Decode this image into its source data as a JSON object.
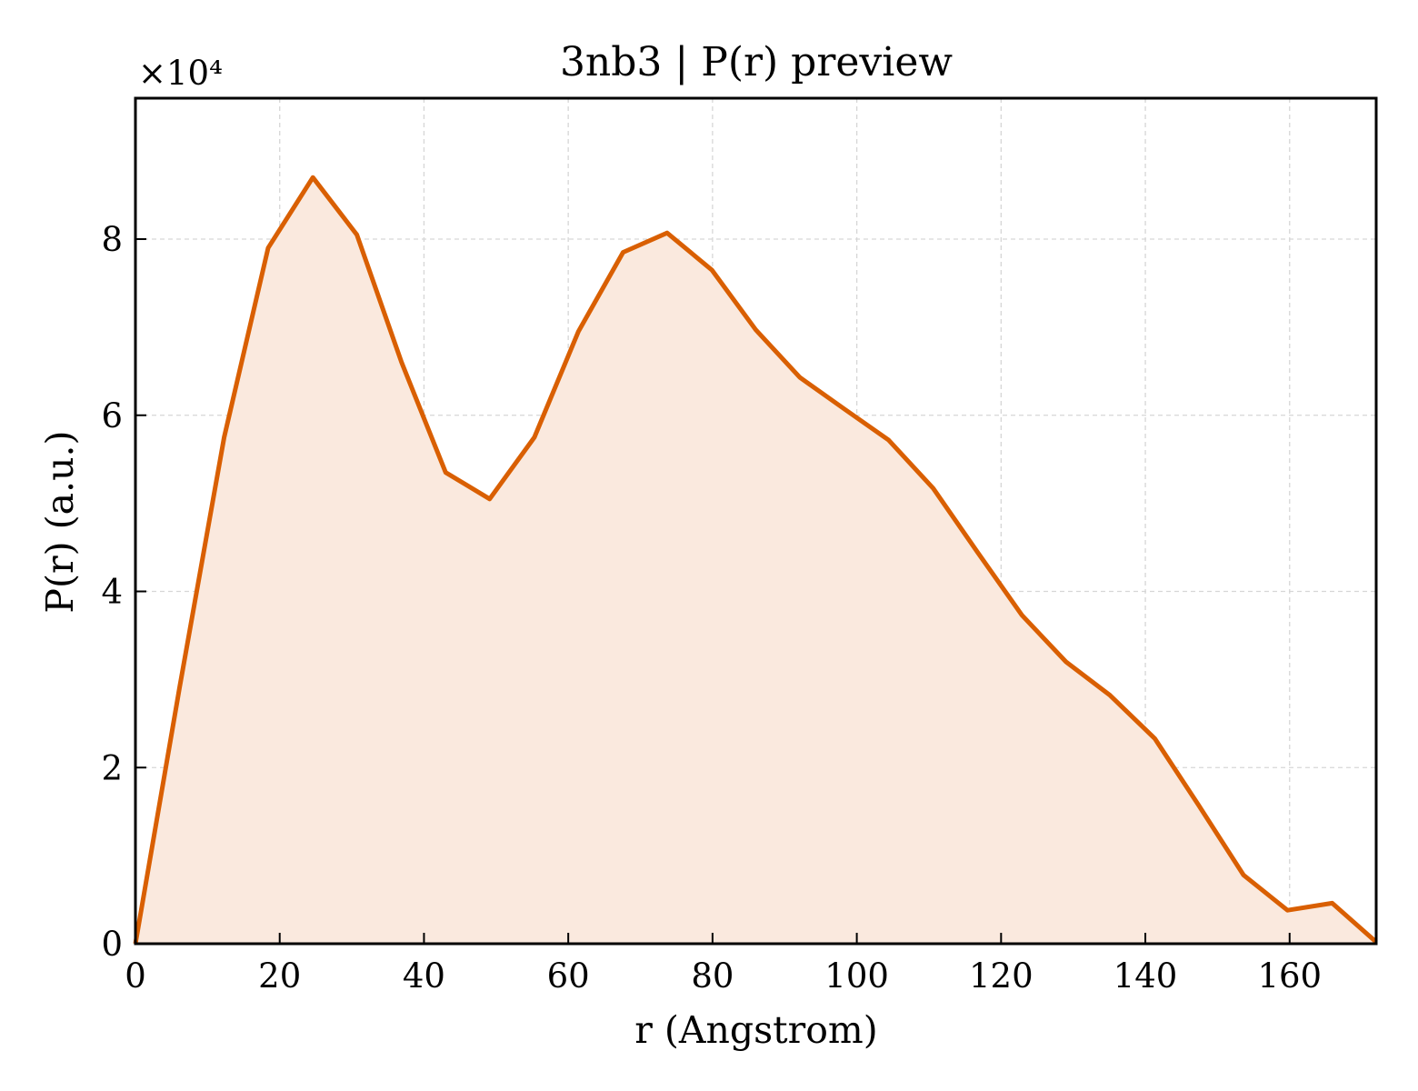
{
  "chart_data": {
    "type": "area",
    "title": "3nb3 | P(r) preview",
    "xlabel": "r (Angstrom)",
    "ylabel": "P(r) (a.u.)",
    "y_multiplier": "×10⁴",
    "xlim": [
      0,
      172
    ],
    "ylim": [
      0,
      9.6
    ],
    "xticks": [
      0,
      20,
      40,
      60,
      80,
      100,
      120,
      140,
      160
    ],
    "yticks": [
      0,
      2,
      4,
      6,
      8
    ],
    "grid": true,
    "line_color": "#d95f02",
    "fill_color": "#fae9de",
    "x": [
      0,
      6.1,
      12.3,
      18.4,
      24.6,
      30.7,
      36.9,
      43.0,
      49.1,
      55.3,
      61.4,
      67.6,
      73.7,
      79.9,
      86.0,
      92.1,
      98.3,
      104.4,
      110.6,
      116.7,
      122.9,
      129.0,
      135.1,
      141.3,
      147.4,
      153.6,
      159.7,
      165.9,
      172.0
    ],
    "y": [
      0,
      2.9,
      5.75,
      7.9,
      8.7,
      8.05,
      6.6,
      5.35,
      5.05,
      5.75,
      6.95,
      7.85,
      8.07,
      7.65,
      6.97,
      6.43,
      6.07,
      5.72,
      5.17,
      4.45,
      3.73,
      3.2,
      2.82,
      2.33,
      1.57,
      0.78,
      0.38,
      0.46,
      0.02
    ]
  }
}
